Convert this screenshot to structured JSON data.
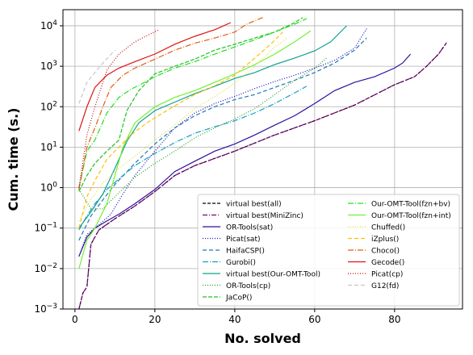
{
  "chart_data": {
    "type": "line",
    "title": "",
    "xlabel": "No. solved",
    "ylabel": "Cum. time (s.)",
    "xlim": [
      -3,
      97
    ],
    "ylim": [
      0.001,
      25000
    ],
    "yscale": "log",
    "grid": true,
    "legend_placement": "lower-right",
    "legend_columns": 2,
    "x_ticks": [
      0,
      20,
      40,
      60,
      80
    ],
    "x_tick_labels": [
      "0",
      "20",
      "40",
      "60",
      "80"
    ],
    "y_ticks": [
      0.001,
      0.01,
      0.1,
      1,
      10,
      100,
      1000,
      10000
    ],
    "y_tick_labels": [
      {
        "base": "10",
        "exp": "−3"
      },
      {
        "base": "10",
        "exp": "−2"
      },
      {
        "base": "10",
        "exp": "−1"
      },
      {
        "base": "10",
        "exp": "0"
      },
      {
        "base": "10",
        "exp": "1"
      },
      {
        "base": "10",
        "exp": "2"
      },
      {
        "base": "10",
        "exp": "3"
      },
      {
        "base": "10",
        "exp": "4"
      }
    ],
    "series": [
      {
        "name": "virtual best(all)",
        "color": "#000000",
        "dash": "4,2",
        "points": [
          [
            1,
            0.001
          ],
          [
            2,
            0.0025
          ],
          [
            3,
            0.0035
          ],
          [
            4,
            0.04
          ],
          [
            6,
            0.09
          ],
          [
            10,
            0.17
          ],
          [
            15,
            0.35
          ],
          [
            20,
            0.8
          ],
          [
            25,
            2
          ],
          [
            30,
            3.5
          ],
          [
            40,
            8
          ],
          [
            50,
            20
          ],
          [
            60,
            45
          ],
          [
            70,
            110
          ],
          [
            80,
            350
          ],
          [
            85,
            550
          ],
          [
            88,
            1000
          ],
          [
            91,
            2000
          ],
          [
            93,
            3800
          ]
        ]
      },
      {
        "name": "virtual best(MiniZinc)",
        "color": "#800080",
        "dash": "6,2,1,2",
        "points": [
          [
            1,
            0.001
          ],
          [
            2,
            0.0025
          ],
          [
            3,
            0.0035
          ],
          [
            4,
            0.04
          ],
          [
            6,
            0.09
          ],
          [
            10,
            0.17
          ],
          [
            15,
            0.35
          ],
          [
            20,
            0.8
          ],
          [
            25,
            2
          ],
          [
            30,
            3.5
          ],
          [
            40,
            8
          ],
          [
            50,
            20
          ],
          [
            60,
            45
          ],
          [
            70,
            110
          ],
          [
            80,
            350
          ],
          [
            85,
            550
          ],
          [
            88,
            1000
          ],
          [
            91,
            2000
          ],
          [
            93,
            3800
          ]
        ]
      },
      {
        "name": "OR-Tools(sat)",
        "color": "#3010a0",
        "dash": "",
        "points": [
          [
            1,
            0.02
          ],
          [
            3,
            0.06
          ],
          [
            5,
            0.1
          ],
          [
            8,
            0.15
          ],
          [
            11,
            0.22
          ],
          [
            15,
            0.4
          ],
          [
            20,
            0.9
          ],
          [
            25,
            2.5
          ],
          [
            30,
            4.5
          ],
          [
            35,
            8
          ],
          [
            40,
            12
          ],
          [
            45,
            20
          ],
          [
            50,
            35
          ],
          [
            55,
            60
          ],
          [
            60,
            120
          ],
          [
            65,
            250
          ],
          [
            70,
            400
          ],
          [
            75,
            550
          ],
          [
            80,
            900
          ],
          [
            82,
            1200
          ],
          [
            84,
            2000
          ]
        ]
      },
      {
        "name": "Picat(sat)",
        "color": "#1010c0",
        "dash": "1,2",
        "points": [
          [
            1,
            0.02
          ],
          [
            3,
            0.07
          ],
          [
            6,
            0.12
          ],
          [
            9,
            0.22
          ],
          [
            12,
            0.7
          ],
          [
            15,
            2
          ],
          [
            20,
            8
          ],
          [
            25,
            30
          ],
          [
            30,
            70
          ],
          [
            35,
            120
          ],
          [
            40,
            180
          ],
          [
            45,
            280
          ],
          [
            50,
            420
          ],
          [
            55,
            600
          ],
          [
            60,
            900
          ],
          [
            65,
            1400
          ],
          [
            70,
            2800
          ],
          [
            73,
            8500
          ]
        ]
      },
      {
        "name": "HaifaCSP()",
        "color": "#1f77b4",
        "dash": "5,3",
        "points": [
          [
            1,
            0.05
          ],
          [
            4,
            0.2
          ],
          [
            7,
            0.5
          ],
          [
            10,
            1.2
          ],
          [
            15,
            4
          ],
          [
            20,
            12
          ],
          [
            25,
            30
          ],
          [
            30,
            60
          ],
          [
            35,
            100
          ],
          [
            40,
            150
          ],
          [
            45,
            200
          ],
          [
            50,
            300
          ],
          [
            55,
            450
          ],
          [
            60,
            700
          ],
          [
            65,
            1200
          ],
          [
            70,
            2500
          ],
          [
            73,
            5000
          ]
        ]
      },
      {
        "name": "Gurobi()",
        "color": "#17a0c0",
        "dash": "7,2,1,2",
        "points": [
          [
            1,
            0.09
          ],
          [
            3,
            0.2
          ],
          [
            5,
            0.4
          ],
          [
            8,
            0.9
          ],
          [
            12,
            2
          ],
          [
            15,
            3.5
          ],
          [
            20,
            7
          ],
          [
            25,
            13
          ],
          [
            30,
            22
          ],
          [
            35,
            32
          ],
          [
            40,
            45
          ],
          [
            45,
            70
          ],
          [
            50,
            120
          ],
          [
            55,
            220
          ],
          [
            58,
            320
          ]
        ]
      },
      {
        "name": "virtual best(Our-OMT-Tool)",
        "color": "#10a090",
        "dash": "",
        "points": [
          [
            1,
            0.1
          ],
          [
            4,
            0.25
          ],
          [
            7,
            0.7
          ],
          [
            10,
            3
          ],
          [
            13,
            14
          ],
          [
            16,
            40
          ],
          [
            20,
            80
          ],
          [
            25,
            130
          ],
          [
            30,
            210
          ],
          [
            35,
            320
          ],
          [
            40,
            500
          ],
          [
            45,
            700
          ],
          [
            50,
            1100
          ],
          [
            55,
            1600
          ],
          [
            60,
            2400
          ],
          [
            64,
            4000
          ],
          [
            68,
            10000
          ]
        ]
      },
      {
        "name": "OR-Tools(cp)",
        "color": "#20a020",
        "dash": "1,2",
        "points": [
          [
            1,
            0.9
          ],
          [
            4,
            0.3
          ],
          [
            7,
            0.3
          ],
          [
            10,
            0.6
          ],
          [
            15,
            1.8
          ],
          [
            20,
            4
          ],
          [
            25,
            8
          ],
          [
            30,
            17
          ],
          [
            35,
            30
          ],
          [
            40,
            50
          ],
          [
            45,
            90
          ],
          [
            50,
            200
          ],
          [
            55,
            450
          ],
          [
            60,
            900
          ],
          [
            63,
            1600
          ]
        ]
      },
      {
        "name": "JaCoP()",
        "color": "#22c022",
        "dash": "5,2",
        "points": [
          [
            1,
            0.8
          ],
          [
            3,
            2
          ],
          [
            5,
            4
          ],
          [
            8,
            8
          ],
          [
            11,
            15
          ],
          [
            13,
            80
          ],
          [
            16,
            250
          ],
          [
            20,
            650
          ],
          [
            25,
            1000
          ],
          [
            30,
            1500
          ],
          [
            35,
            2500
          ],
          [
            40,
            3500
          ],
          [
            45,
            5000
          ],
          [
            50,
            7000
          ],
          [
            55,
            12000
          ],
          [
            57,
            16000
          ]
        ]
      },
      {
        "name": "Our-OMT-Tool(fzn+bv)",
        "color": "#20e020",
        "dash": "7,2,1,2",
        "points": [
          [
            1,
            1
          ],
          [
            3,
            8
          ],
          [
            5,
            15
          ],
          [
            8,
            70
          ],
          [
            11,
            170
          ],
          [
            14,
            270
          ],
          [
            17,
            380
          ],
          [
            20,
            550
          ],
          [
            25,
            900
          ],
          [
            30,
            1300
          ],
          [
            35,
            2000
          ],
          [
            40,
            3000
          ],
          [
            45,
            4500
          ],
          [
            50,
            7000
          ],
          [
            55,
            11000
          ],
          [
            58,
            15000
          ]
        ]
      },
      {
        "name": "Our-OMT-Tool(fzn+int)",
        "color": "#70f030",
        "dash": "",
        "points": [
          [
            1,
            0.01
          ],
          [
            3,
            0.05
          ],
          [
            5,
            0.1
          ],
          [
            8,
            0.4
          ],
          [
            10,
            2
          ],
          [
            12,
            10
          ],
          [
            15,
            40
          ],
          [
            20,
            100
          ],
          [
            25,
            170
          ],
          [
            30,
            250
          ],
          [
            35,
            400
          ],
          [
            40,
            650
          ],
          [
            45,
            1100
          ],
          [
            50,
            2000
          ],
          [
            55,
            4000
          ],
          [
            59,
            7500
          ]
        ]
      },
      {
        "name": "Chuffed()",
        "color": "#e0e040",
        "dash": "1,2",
        "points": [
          [
            1,
            0.15
          ],
          [
            4,
            0.5
          ],
          [
            7,
            1.3
          ],
          [
            10,
            2.5
          ],
          [
            15,
            6
          ],
          [
            20,
            15
          ],
          [
            25,
            35
          ],
          [
            30,
            90
          ],
          [
            35,
            180
          ],
          [
            40,
            380
          ],
          [
            45,
            1000
          ],
          [
            50,
            3000
          ],
          [
            53,
            4800
          ]
        ]
      },
      {
        "name": "iZplus()",
        "color": "#ffc000",
        "dash": "5,3",
        "points": [
          [
            1,
            0.1
          ],
          [
            3,
            0.6
          ],
          [
            5,
            1.5
          ],
          [
            8,
            5
          ],
          [
            11,
            10
          ],
          [
            14,
            20
          ],
          [
            18,
            40
          ],
          [
            22,
            70
          ],
          [
            26,
            120
          ],
          [
            30,
            200
          ],
          [
            35,
            330
          ],
          [
            40,
            600
          ],
          [
            45,
            1600
          ],
          [
            49,
            3500
          ],
          [
            52,
            7000
          ]
        ]
      },
      {
        "name": "Choco()",
        "color": "#e06010",
        "dash": "7,2,1,2",
        "points": [
          [
            1,
            0.9
          ],
          [
            3,
            10
          ],
          [
            5,
            30
          ],
          [
            7,
            100
          ],
          [
            9,
            300
          ],
          [
            12,
            600
          ],
          [
            15,
            900
          ],
          [
            20,
            1500
          ],
          [
            25,
            2500
          ],
          [
            30,
            3700
          ],
          [
            35,
            5000
          ],
          [
            40,
            7000
          ],
          [
            43,
            11000
          ],
          [
            47,
            16000
          ]
        ]
      },
      {
        "name": "Gecode()",
        "color": "#e01010",
        "dash": "",
        "points": [
          [
            1,
            25
          ],
          [
            3,
            100
          ],
          [
            5,
            300
          ],
          [
            8,
            600
          ],
          [
            11,
            900
          ],
          [
            15,
            1300
          ],
          [
            20,
            2000
          ],
          [
            25,
            3500
          ],
          [
            30,
            5500
          ],
          [
            35,
            8000
          ],
          [
            39,
            12000
          ]
        ]
      },
      {
        "name": "Picat(cp)",
        "color": "#c01010",
        "dash": "1,2",
        "points": [
          [
            1,
            1
          ],
          [
            3,
            20
          ],
          [
            5,
            100
          ],
          [
            8,
            800
          ],
          [
            11,
            2000
          ],
          [
            15,
            4000
          ],
          [
            21,
            8000
          ]
        ]
      },
      {
        "name": "G12(fd)",
        "color": "#c8c8c8",
        "dash": "5,3",
        "points": [
          [
            1,
            120
          ],
          [
            3,
            400
          ],
          [
            5,
            700
          ],
          [
            7,
            1200
          ],
          [
            10,
            2500
          ]
        ]
      }
    ]
  }
}
